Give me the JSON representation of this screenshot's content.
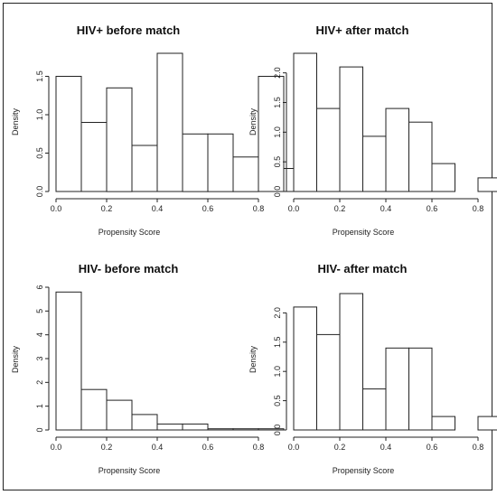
{
  "chart_data": [
    {
      "type": "bar",
      "title": "HIV+ before match",
      "xlabel": "Propensity Score",
      "ylabel": "Density",
      "bin_edges": [
        0.0,
        0.1,
        0.2,
        0.3,
        0.4,
        0.5,
        0.6,
        0.7,
        0.8,
        0.9,
        1.0
      ],
      "values": [
        1.5,
        0.9,
        1.35,
        0.6,
        1.8,
        0.75,
        0.75,
        0.45,
        1.5,
        0.3
      ],
      "xlim": [
        0.0,
        1.0
      ],
      "ylim": [
        0,
        1.8
      ],
      "xticks": [
        "0.0",
        "0.2",
        "0.4",
        "0.6",
        "0.8"
      ],
      "yticks": [
        "0.0",
        "0.5",
        "1.0",
        "1.5"
      ]
    },
    {
      "type": "bar",
      "title": "HIV+ after match",
      "xlabel": "Propensity Score",
      "ylabel": "Density",
      "bin_edges": [
        0.0,
        0.1,
        0.2,
        0.3,
        0.4,
        0.5,
        0.6,
        0.7,
        0.8,
        0.9
      ],
      "values": [
        2.33,
        1.4,
        2.1,
        0.93,
        1.4,
        1.17,
        0.47,
        0.0,
        0.23
      ],
      "xlim": [
        0.0,
        0.9
      ],
      "ylim": [
        0,
        2.33
      ],
      "xticks": [
        "0.0",
        "0.2",
        "0.4",
        "0.6",
        "0.8"
      ],
      "yticks": [
        "0.0",
        "0.5",
        "1.0",
        "1.5",
        "2.0"
      ]
    },
    {
      "type": "bar",
      "title": "HIV- before match",
      "xlabel": "Propensity Score",
      "ylabel": "Density",
      "bin_edges": [
        0.0,
        0.1,
        0.2,
        0.3,
        0.4,
        0.5,
        0.6,
        0.7,
        0.8,
        0.9
      ],
      "values": [
        5.8,
        1.7,
        1.25,
        0.65,
        0.25,
        0.25,
        0.05,
        0.05,
        0.05
      ],
      "xlim": [
        0.0,
        0.9
      ],
      "ylim": [
        0,
        6
      ],
      "xticks": [
        "0.0",
        "0.2",
        "0.4",
        "0.6",
        "0.8"
      ],
      "yticks": [
        "0",
        "1",
        "2",
        "3",
        "4",
        "5",
        "6"
      ]
    },
    {
      "type": "bar",
      "title": "HIV- after match",
      "xlabel": "Propensity Score",
      "ylabel": "Density",
      "bin_edges": [
        0.0,
        0.1,
        0.2,
        0.3,
        0.4,
        0.5,
        0.6,
        0.7,
        0.8,
        0.9
      ],
      "values": [
        2.1,
        1.63,
        2.33,
        0.7,
        1.4,
        1.4,
        0.23,
        0.0,
        0.23
      ],
      "xlim": [
        0.0,
        0.9
      ],
      "ylim": [
        0,
        2.33
      ],
      "xticks": [
        "0.0",
        "0.2",
        "0.4",
        "0.6",
        "0.8"
      ],
      "yticks": [
        "0.0",
        "0.5",
        "1.0",
        "1.5",
        "2.0"
      ]
    }
  ]
}
